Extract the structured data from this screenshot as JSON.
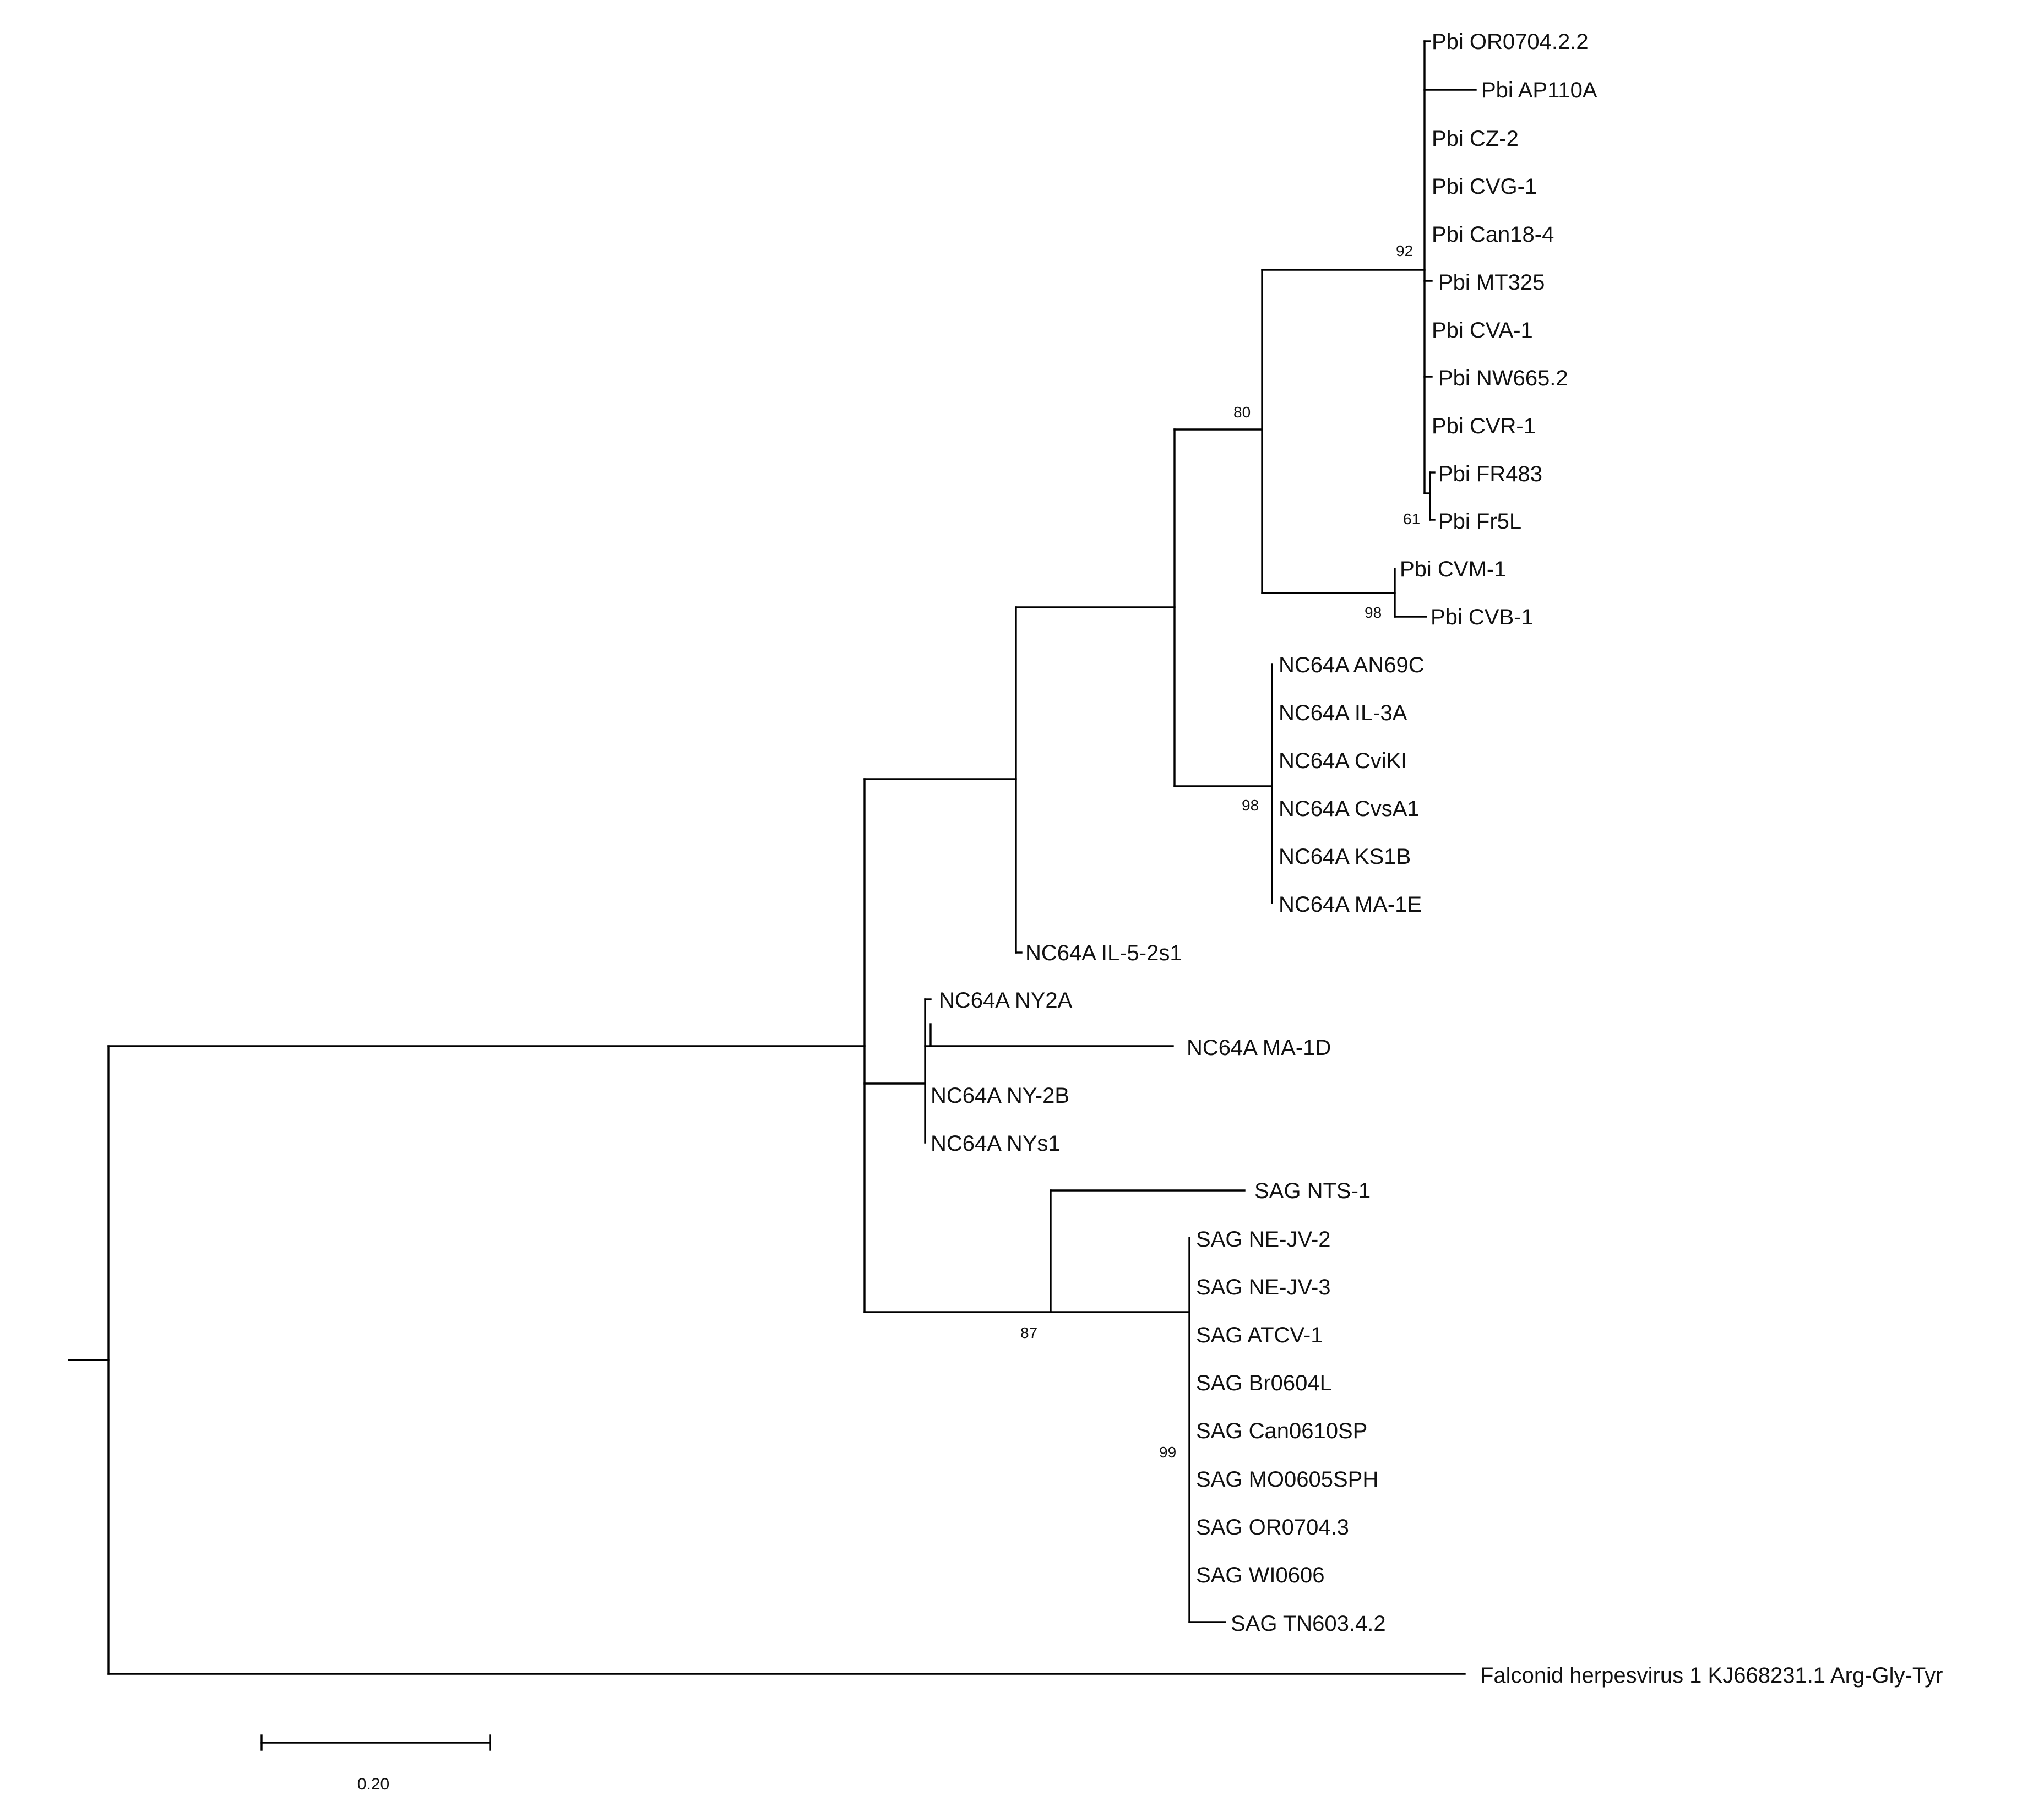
{
  "figure": {
    "type": "phylogenetic-tree",
    "scale_bar_label": "0.20"
  },
  "leaves": {
    "pbi_or0704": "Pbi OR0704.2.2",
    "pbi_ap110a": "Pbi AP110A",
    "pbi_cz2": "Pbi CZ-2",
    "pbi_cvg1": "Pbi CVG-1",
    "pbi_can184": "Pbi Can18-4",
    "pbi_mt325": "Pbi MT325",
    "pbi_cva1": "Pbi CVA-1",
    "pbi_nw665": "Pbi NW665.2",
    "pbi_cvr1": "Pbi CVR-1",
    "pbi_fr483": "Pbi FR483",
    "pbi_fr5l": "Pbi Fr5L",
    "pbi_cvm1": "Pbi CVM-1",
    "pbi_cvb1": "Pbi CVB-1",
    "nc_an69c": "NC64A AN69C",
    "nc_il3a": "NC64A IL-3A",
    "nc_cvikl": "NC64A CviKI",
    "nc_cvsa1": "NC64A CvsA1",
    "nc_ks1b": "NC64A KS1B",
    "nc_ma1e": "NC64A MA-1E",
    "nc_il52s1": "NC64A IL-5-2s1",
    "nc_ny2a": "NC64A NY2A",
    "nc_ma1d": "NC64A MA-1D",
    "nc_ny2b": "NC64A NY-2B",
    "nc_nys1": "NC64A NYs1",
    "sag_nts1": "SAG NTS-1",
    "sag_nejv2": "SAG NE-JV-2",
    "sag_nejv3": "SAG NE-JV-3",
    "sag_atcv1": "SAG ATCV-1",
    "sag_br0604l": "SAG Br0604L",
    "sag_can0610sp": "SAG Can0610SP",
    "sag_mo0605sph": "SAG MO0605SPH",
    "sag_or07043": "SAG OR0704.3",
    "sag_wi0606": "SAG WI0606",
    "sag_tn603": "SAG TN603.4.2",
    "outgroup": "Falconid herpesvirus 1 KJ668231.1 Arg-Gly-Tyr"
  },
  "bootstrap": {
    "pbi_main": "92",
    "pbi_clade": "80",
    "pbi_fr": "61",
    "pbi_cvm_cvb": "98",
    "nc_clade": "98",
    "sag_clade": "87",
    "sag_core": "99"
  }
}
